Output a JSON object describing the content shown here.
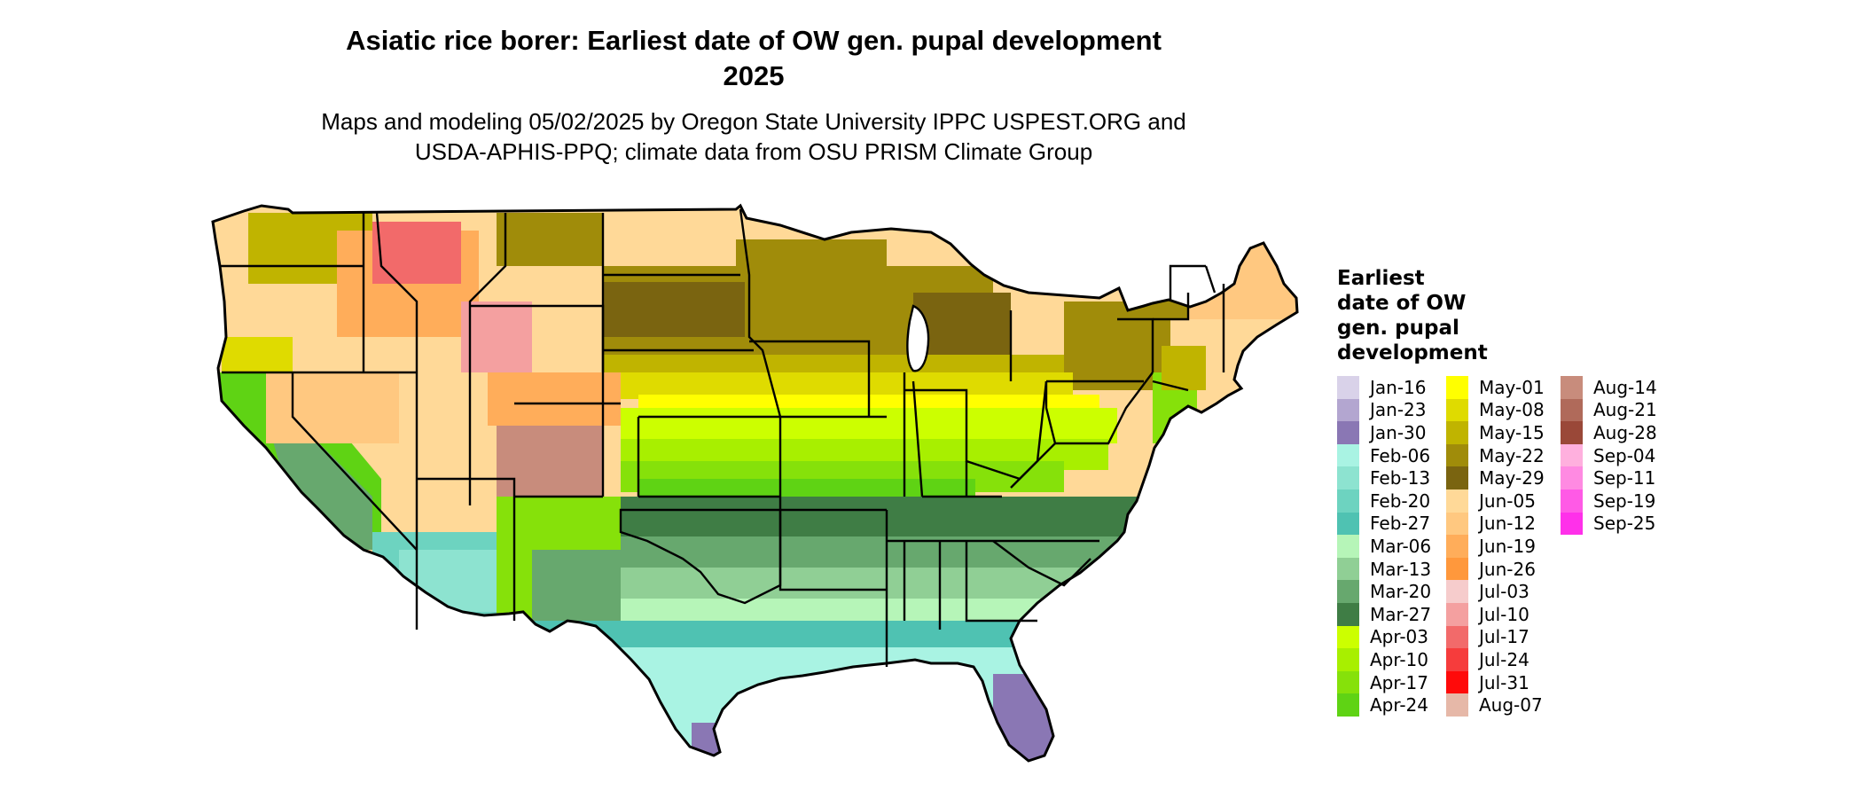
{
  "title_lines": [
    "Asiatic rice borer: Earliest date of OW gen. pupal development",
    "2025"
  ],
  "subtitle_lines": [
    "Maps and modeling 05/02/2025 by Oregon State University IPPC USPEST.ORG and",
    "USDA-APHIS-PPQ; climate data from OSU PRISM Climate Group"
  ],
  "legend": {
    "title_lines": [
      "Earliest",
      "date of OW",
      "gen. pupal",
      "development"
    ],
    "columns": [
      [
        {
          "label": "Jan-16",
          "color": "#d9d2e9"
        },
        {
          "label": "Jan-23",
          "color": "#b3a6d0"
        },
        {
          "label": "Jan-30",
          "color": "#8a77b4"
        },
        {
          "label": "Feb-06",
          "color": "#a9f3e3"
        },
        {
          "label": "Feb-13",
          "color": "#8de3d0"
        },
        {
          "label": "Feb-20",
          "color": "#6dd3c0"
        },
        {
          "label": "Feb-27",
          "color": "#4fc2b2"
        },
        {
          "label": "Mar-06",
          "color": "#b6f5b8"
        },
        {
          "label": "Mar-13",
          "color": "#90cf95"
        },
        {
          "label": "Mar-20",
          "color": "#67a86e"
        },
        {
          "label": "Mar-27",
          "color": "#3f7d45"
        },
        {
          "label": "Apr-03",
          "color": "#ccff00"
        },
        {
          "label": "Apr-10",
          "color": "#a8ef00"
        },
        {
          "label": "Apr-17",
          "color": "#86e10a"
        },
        {
          "label": "Apr-24",
          "color": "#5fd314"
        }
      ],
      [
        {
          "label": "May-01",
          "color": "#ffff00"
        },
        {
          "label": "May-08",
          "color": "#dfdb00"
        },
        {
          "label": "May-15",
          "color": "#c0b400"
        },
        {
          "label": "May-22",
          "color": "#a08c0a"
        },
        {
          "label": "May-29",
          "color": "#7a6410"
        },
        {
          "label": "Jun-05",
          "color": "#ffd998"
        },
        {
          "label": "Jun-12",
          "color": "#ffc880"
        },
        {
          "label": "Jun-19",
          "color": "#ffad5a"
        },
        {
          "label": "Jun-26",
          "color": "#ff983c"
        },
        {
          "label": "Jul-03",
          "color": "#f6cccc"
        },
        {
          "label": "Jul-10",
          "color": "#f4a0a0"
        },
        {
          "label": "Jul-17",
          "color": "#f26a6a"
        },
        {
          "label": "Jul-24",
          "color": "#f63c3c"
        },
        {
          "label": "Jul-31",
          "color": "#ff0a0a"
        },
        {
          "label": "Aug-07",
          "color": "#e6b8a8"
        }
      ],
      [
        {
          "label": "Aug-14",
          "color": "#c88c7c"
        },
        {
          "label": "Aug-21",
          "color": "#b06a5a"
        },
        {
          "label": "Aug-28",
          "color": "#9a4838"
        },
        {
          "label": "Sep-04",
          "color": "#ffb0de"
        },
        {
          "label": "Sep-11",
          "color": "#ff8ae2"
        },
        {
          "label": "Sep-19",
          "color": "#ff5ae6"
        },
        {
          "label": "Sep-25",
          "color": "#ff30ea"
        }
      ]
    ]
  }
}
